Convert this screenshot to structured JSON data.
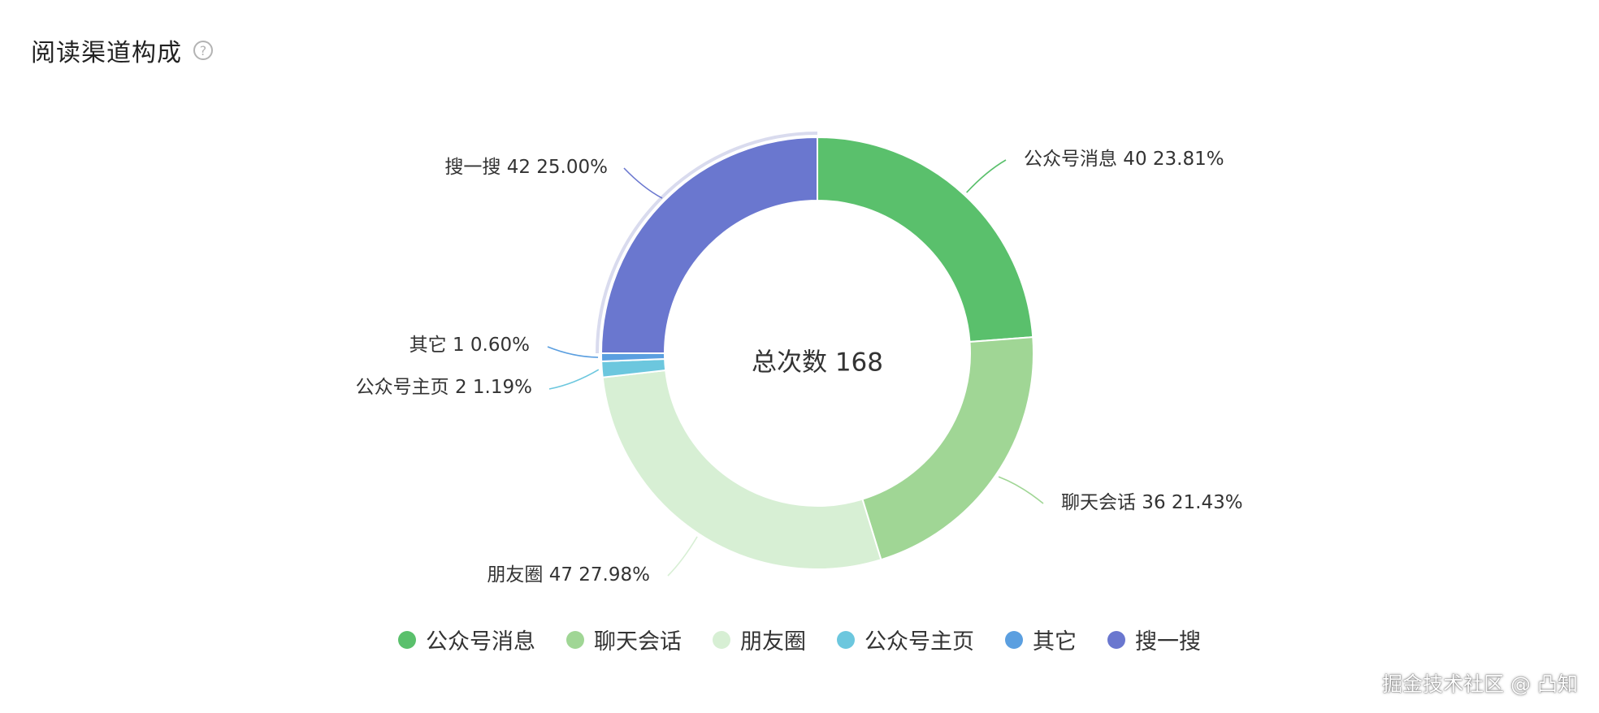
{
  "card": {
    "title": "阅读渠道构成",
    "help_icon": "question-circle-icon",
    "help_glyph": "?"
  },
  "chart_data": {
    "type": "pie",
    "center_label": "总次数 168",
    "total": 168,
    "legend_position": "bottom",
    "slices": [
      {
        "name": "公众号消息",
        "value": 40,
        "percent": "23.81%",
        "color": "#5ac06c"
      },
      {
        "name": "聊天会话",
        "value": 36,
        "percent": "21.43%",
        "color": "#a0d695"
      },
      {
        "name": "朋友圈",
        "value": 47,
        "percent": "27.98%",
        "color": "#d7efd4"
      },
      {
        "name": "公众号主页",
        "value": 2,
        "percent": "1.19%",
        "color": "#6cc7de"
      },
      {
        "name": "其它",
        "value": 1,
        "percent": "0.60%",
        "color": "#5b9fe0"
      },
      {
        "name": "搜一搜",
        "value": 42,
        "percent": "25.00%",
        "color": "#6a77cf"
      }
    ]
  },
  "watermark": "掘金技术社区 @ 凸知"
}
